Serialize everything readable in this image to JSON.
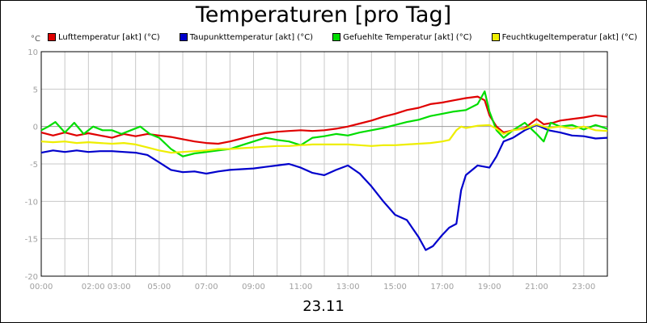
{
  "chart_data": {
    "type": "line",
    "title": "Temperaturen [pro Tag]",
    "subtitle": "23.11",
    "yunit": "°C",
    "ylim": [
      -20,
      10
    ],
    "xlim": [
      0,
      24
    ],
    "yticks": [
      -20,
      -15,
      -10,
      -5,
      0,
      5,
      10
    ],
    "xticks": [
      {
        "pos": 0,
        "label": "00:00"
      },
      {
        "pos": 2.75,
        "label": "02:00 03:00"
      },
      {
        "pos": 5,
        "label": "05:00"
      },
      {
        "pos": 7,
        "label": "07:00"
      },
      {
        "pos": 9,
        "label": "09:00"
      },
      {
        "pos": 11,
        "label": "11:00"
      },
      {
        "pos": 13,
        "label": "13:00"
      },
      {
        "pos": 15,
        "label": "15:00"
      },
      {
        "pos": 17,
        "label": "17:00"
      },
      {
        "pos": 19,
        "label": "19:00"
      },
      {
        "pos": 21,
        "label": "21:00"
      },
      {
        "pos": 23,
        "label": "23:00"
      }
    ],
    "grid": true,
    "legend_position": "top",
    "series": [
      {
        "name": "Lufttemperatur [akt] (°C)",
        "color": "#e00000",
        "points": [
          [
            0,
            -0.8
          ],
          [
            0.5,
            -1.2
          ],
          [
            1,
            -0.8
          ],
          [
            1.5,
            -1.2
          ],
          [
            2,
            -0.9
          ],
          [
            2.5,
            -1.2
          ],
          [
            3,
            -1.5
          ],
          [
            3.5,
            -1.0
          ],
          [
            4,
            -1.3
          ],
          [
            4.5,
            -1.0
          ],
          [
            5,
            -1.2
          ],
          [
            5.5,
            -1.4
          ],
          [
            6,
            -1.7
          ],
          [
            6.5,
            -2.0
          ],
          [
            7,
            -2.2
          ],
          [
            7.5,
            -2.3
          ],
          [
            8,
            -2.0
          ],
          [
            8.5,
            -1.6
          ],
          [
            9,
            -1.2
          ],
          [
            9.5,
            -0.9
          ],
          [
            10,
            -0.7
          ],
          [
            10.5,
            -0.6
          ],
          [
            11,
            -0.5
          ],
          [
            11.5,
            -0.6
          ],
          [
            12,
            -0.5
          ],
          [
            12.5,
            -0.3
          ],
          [
            13,
            0.0
          ],
          [
            13.5,
            0.4
          ],
          [
            14,
            0.8
          ],
          [
            14.5,
            1.3
          ],
          [
            15,
            1.7
          ],
          [
            15.5,
            2.2
          ],
          [
            16,
            2.5
          ],
          [
            16.5,
            3.0
          ],
          [
            17,
            3.2
          ],
          [
            17.5,
            3.5
          ],
          [
            18,
            3.8
          ],
          [
            18.5,
            4.0
          ],
          [
            18.8,
            3.5
          ],
          [
            19,
            1.5
          ],
          [
            19.3,
            0.0
          ],
          [
            19.6,
            -0.8
          ],
          [
            20,
            -0.5
          ],
          [
            20.5,
            -0.2
          ],
          [
            21,
            1.0
          ],
          [
            21.3,
            0.3
          ],
          [
            21.7,
            0.5
          ],
          [
            22,
            0.8
          ],
          [
            22.5,
            1.0
          ],
          [
            23,
            1.2
          ],
          [
            23.5,
            1.5
          ],
          [
            24,
            1.3
          ]
        ]
      },
      {
        "name": "Taupunkttemperatur [akt] (°C)",
        "color": "#0000cc",
        "points": [
          [
            0,
            -3.5
          ],
          [
            0.5,
            -3.2
          ],
          [
            1,
            -3.4
          ],
          [
            1.5,
            -3.2
          ],
          [
            2,
            -3.4
          ],
          [
            2.5,
            -3.3
          ],
          [
            3,
            -3.3
          ],
          [
            3.5,
            -3.4
          ],
          [
            4,
            -3.5
          ],
          [
            4.5,
            -3.8
          ],
          [
            5,
            -4.8
          ],
          [
            5.5,
            -5.8
          ],
          [
            6,
            -6.1
          ],
          [
            6.5,
            -6.0
          ],
          [
            7,
            -6.3
          ],
          [
            7.5,
            -6.0
          ],
          [
            8,
            -5.8
          ],
          [
            8.5,
            -5.7
          ],
          [
            9,
            -5.6
          ],
          [
            9.5,
            -5.4
          ],
          [
            10,
            -5.2
          ],
          [
            10.5,
            -5.0
          ],
          [
            11,
            -5.5
          ],
          [
            11.5,
            -6.2
          ],
          [
            12,
            -6.5
          ],
          [
            12.5,
            -5.8
          ],
          [
            13,
            -5.2
          ],
          [
            13.5,
            -6.3
          ],
          [
            14,
            -8.0
          ],
          [
            14.5,
            -10.0
          ],
          [
            15,
            -11.8
          ],
          [
            15.5,
            -12.5
          ],
          [
            16,
            -14.8
          ],
          [
            16.3,
            -16.5
          ],
          [
            16.6,
            -16.0
          ],
          [
            17,
            -14.5
          ],
          [
            17.3,
            -13.5
          ],
          [
            17.6,
            -13.0
          ],
          [
            17.8,
            -8.5
          ],
          [
            18,
            -6.5
          ],
          [
            18.5,
            -5.2
          ],
          [
            19,
            -5.5
          ],
          [
            19.3,
            -4.0
          ],
          [
            19.6,
            -2.0
          ],
          [
            20,
            -1.5
          ],
          [
            20.5,
            -0.5
          ],
          [
            21,
            0.2
          ],
          [
            21.5,
            -0.5
          ],
          [
            22,
            -0.8
          ],
          [
            22.5,
            -1.2
          ],
          [
            23,
            -1.3
          ],
          [
            23.5,
            -1.6
          ],
          [
            24,
            -1.5
          ]
        ]
      },
      {
        "name": "Gefuehlte Temperatur [akt] (°C)",
        "color": "#00dd00",
        "points": [
          [
            0,
            -0.5
          ],
          [
            0.3,
            0.0
          ],
          [
            0.6,
            0.6
          ],
          [
            1,
            -0.8
          ],
          [
            1.4,
            0.5
          ],
          [
            1.8,
            -1.0
          ],
          [
            2.2,
            0.0
          ],
          [
            2.6,
            -0.5
          ],
          [
            3,
            -0.5
          ],
          [
            3.4,
            -1.0
          ],
          [
            3.8,
            -0.5
          ],
          [
            4.2,
            0.0
          ],
          [
            4.6,
            -1.0
          ],
          [
            5,
            -1.5
          ],
          [
            5.5,
            -3.0
          ],
          [
            6,
            -4.0
          ],
          [
            6.5,
            -3.6
          ],
          [
            7,
            -3.4
          ],
          [
            7.5,
            -3.2
          ],
          [
            8,
            -3.0
          ],
          [
            8.5,
            -2.5
          ],
          [
            9,
            -2.0
          ],
          [
            9.5,
            -1.5
          ],
          [
            10,
            -1.8
          ],
          [
            10.5,
            -2.0
          ],
          [
            11,
            -2.5
          ],
          [
            11.5,
            -1.5
          ],
          [
            12,
            -1.3
          ],
          [
            12.5,
            -1.0
          ],
          [
            13,
            -1.2
          ],
          [
            13.5,
            -0.8
          ],
          [
            14,
            -0.5
          ],
          [
            14.5,
            -0.2
          ],
          [
            15,
            0.2
          ],
          [
            15.5,
            0.6
          ],
          [
            16,
            0.9
          ],
          [
            16.5,
            1.4
          ],
          [
            17,
            1.7
          ],
          [
            17.5,
            2.0
          ],
          [
            18,
            2.2
          ],
          [
            18.5,
            3.0
          ],
          [
            18.8,
            4.7
          ],
          [
            19,
            2.0
          ],
          [
            19.3,
            -0.5
          ],
          [
            19.6,
            -1.5
          ],
          [
            20,
            -0.5
          ],
          [
            20.5,
            0.5
          ],
          [
            21,
            -1.0
          ],
          [
            21.3,
            -2.0
          ],
          [
            21.6,
            0.5
          ],
          [
            22,
            0.0
          ],
          [
            22.5,
            0.2
          ],
          [
            23,
            -0.4
          ],
          [
            23.5,
            0.2
          ],
          [
            24,
            -0.3
          ]
        ]
      },
      {
        "name": "Feuchtkugeltemperatur [akt] (°C)",
        "color": "#eeee00",
        "points": [
          [
            0,
            -2.0
          ],
          [
            0.5,
            -2.1
          ],
          [
            1,
            -2.0
          ],
          [
            1.5,
            -2.2
          ],
          [
            2,
            -2.1
          ],
          [
            2.5,
            -2.2
          ],
          [
            3,
            -2.3
          ],
          [
            3.5,
            -2.2
          ],
          [
            4,
            -2.4
          ],
          [
            4.5,
            -2.8
          ],
          [
            5,
            -3.2
          ],
          [
            5.5,
            -3.5
          ],
          [
            6,
            -3.4
          ],
          [
            6.5,
            -3.3
          ],
          [
            7,
            -3.2
          ],
          [
            7.5,
            -3.0
          ],
          [
            8,
            -3.0
          ],
          [
            8.5,
            -2.9
          ],
          [
            9,
            -2.8
          ],
          [
            9.5,
            -2.7
          ],
          [
            10,
            -2.6
          ],
          [
            10.5,
            -2.6
          ],
          [
            11,
            -2.5
          ],
          [
            11.5,
            -2.4
          ],
          [
            12,
            -2.4
          ],
          [
            12.5,
            -2.4
          ],
          [
            13,
            -2.4
          ],
          [
            13.5,
            -2.5
          ],
          [
            14,
            -2.6
          ],
          [
            14.5,
            -2.5
          ],
          [
            15,
            -2.5
          ],
          [
            15.5,
            -2.4
          ],
          [
            16,
            -2.3
          ],
          [
            16.5,
            -2.2
          ],
          [
            17,
            -2.0
          ],
          [
            17.3,
            -1.8
          ],
          [
            17.6,
            -0.5
          ],
          [
            17.8,
            0.0
          ],
          [
            18,
            -0.2
          ],
          [
            18.5,
            0.1
          ],
          [
            19,
            0.2
          ],
          [
            19.3,
            -0.3
          ],
          [
            19.6,
            -1.0
          ],
          [
            20,
            -0.5
          ],
          [
            20.5,
            -0.3
          ],
          [
            21,
            0.3
          ],
          [
            21.5,
            -0.2
          ],
          [
            22,
            0.0
          ],
          [
            22.5,
            -0.3
          ],
          [
            23,
            0.0
          ],
          [
            23.5,
            -0.5
          ],
          [
            24,
            -0.6
          ]
        ]
      }
    ]
  }
}
